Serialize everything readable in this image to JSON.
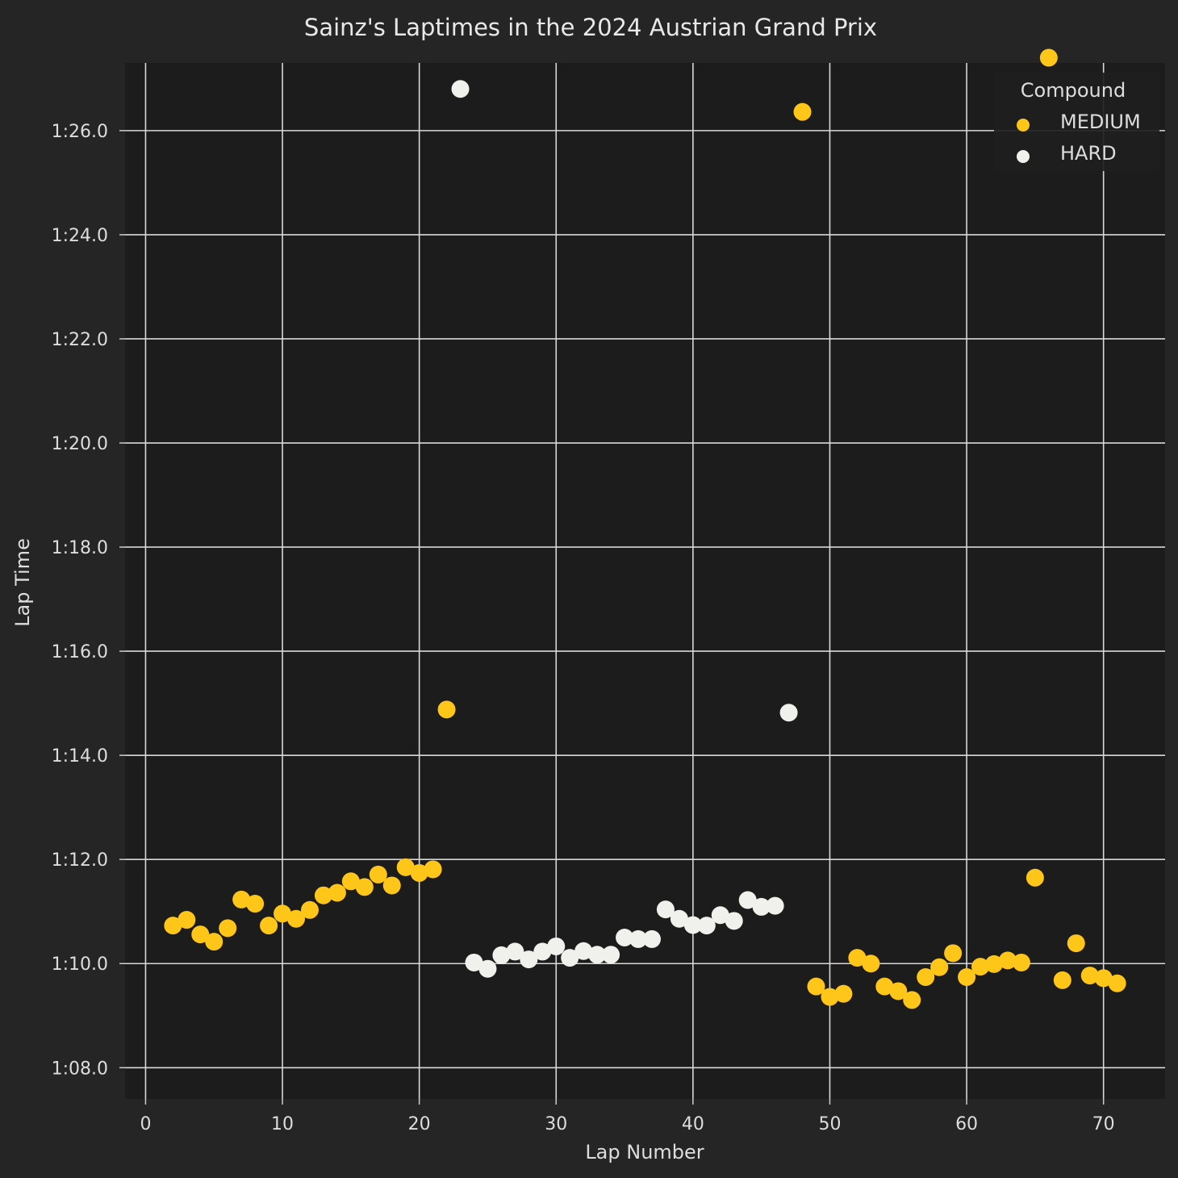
{
  "chart_data": {
    "type": "scatter",
    "title": "Sainz's Laptimes in the 2024 Austrian Grand Prix",
    "xlabel": "Lap Number",
    "ylabel": "Lap Time",
    "xlim": [
      -1.5,
      74.5
    ],
    "ylim": [
      67.4,
      87.3
    ],
    "x_ticks": [
      0,
      10,
      20,
      30,
      40,
      50,
      60,
      70
    ],
    "y_ticks": [
      68,
      70,
      72,
      74,
      76,
      78,
      80,
      82,
      84,
      86
    ],
    "y_tick_labels": [
      "1:08.0",
      "1:10.0",
      "1:12.0",
      "1:14.0",
      "1:16.0",
      "1:18.0",
      "1:20.0",
      "1:22.0",
      "1:24.0",
      "1:26.0"
    ],
    "grid": true,
    "legend_position": "top-right",
    "legend_title": "Compound",
    "series": [
      {
        "name": "MEDIUM",
        "color": "#FFC61A",
        "points": [
          [
            2,
            70.73
          ],
          [
            3,
            70.84
          ],
          [
            4,
            70.56
          ],
          [
            5,
            70.42
          ],
          [
            6,
            70.68
          ],
          [
            7,
            71.23
          ],
          [
            8,
            71.15
          ],
          [
            9,
            70.73
          ],
          [
            10,
            70.96
          ],
          [
            11,
            70.86
          ],
          [
            12,
            71.03
          ],
          [
            13,
            71.31
          ],
          [
            14,
            71.36
          ],
          [
            15,
            71.58
          ],
          [
            16,
            71.47
          ],
          [
            17,
            71.71
          ],
          [
            18,
            71.5
          ],
          [
            19,
            71.85
          ],
          [
            20,
            71.74
          ],
          [
            21,
            71.81
          ],
          [
            22,
            74.88
          ],
          [
            48,
            86.36
          ],
          [
            49,
            69.56
          ],
          [
            50,
            69.36
          ],
          [
            51,
            69.42
          ],
          [
            52,
            70.11
          ],
          [
            53,
            70.0
          ],
          [
            54,
            69.56
          ],
          [
            55,
            69.47
          ],
          [
            56,
            69.3
          ],
          [
            57,
            69.74
          ],
          [
            58,
            69.93
          ],
          [
            59,
            70.2
          ],
          [
            60,
            69.74
          ],
          [
            61,
            69.94
          ],
          [
            62,
            69.99
          ],
          [
            63,
            70.06
          ],
          [
            64,
            70.02
          ],
          [
            65,
            71.65
          ],
          [
            66,
            87.4
          ],
          [
            67,
            69.68
          ],
          [
            68,
            70.39
          ],
          [
            69,
            69.77
          ],
          [
            70,
            69.72
          ],
          [
            71,
            69.62
          ]
        ]
      },
      {
        "name": "HARD",
        "color": "#F0F0EC",
        "points": [
          [
            23,
            86.8
          ],
          [
            24,
            70.02
          ],
          [
            25,
            69.9
          ],
          [
            26,
            70.16
          ],
          [
            27,
            70.23
          ],
          [
            28,
            70.08
          ],
          [
            29,
            70.23
          ],
          [
            30,
            70.33
          ],
          [
            31,
            70.11
          ],
          [
            32,
            70.24
          ],
          [
            33,
            70.17
          ],
          [
            34,
            70.17
          ],
          [
            35,
            70.5
          ],
          [
            36,
            70.47
          ],
          [
            37,
            70.47
          ],
          [
            38,
            71.04
          ],
          [
            39,
            70.86
          ],
          [
            40,
            70.74
          ],
          [
            41,
            70.73
          ],
          [
            42,
            70.93
          ],
          [
            43,
            70.82
          ],
          [
            44,
            71.22
          ],
          [
            45,
            71.09
          ],
          [
            46,
            71.11
          ],
          [
            47,
            74.82
          ]
        ]
      }
    ]
  }
}
